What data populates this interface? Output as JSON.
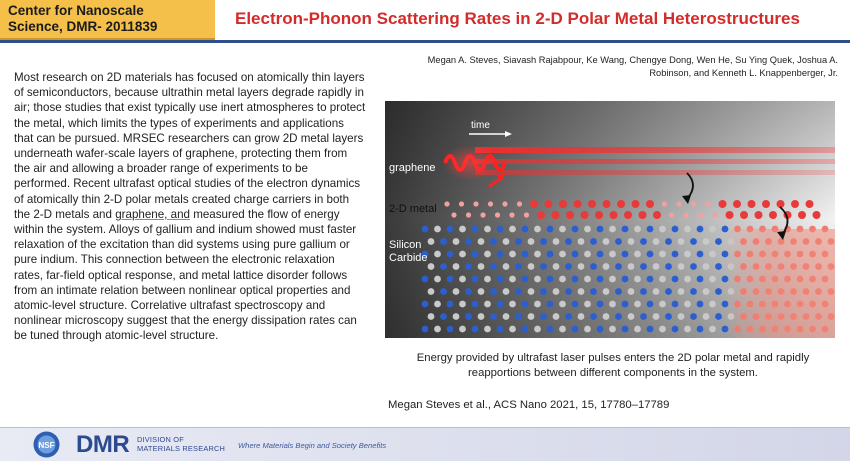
{
  "header": {
    "center_line1": "Center for Nanoscale",
    "center_line2": "Science, DMR- 2011839",
    "title": "Electron-Phonon Scattering Rates in 2-D Polar Metal Heterostructures"
  },
  "authors": {
    "line1": "Megan A. Steves, Siavash Rajabpour, Ke Wang, Chengye Dong, Wen He, Su Ying Quek, Joshua A.",
    "line2": "Robinson, and Kenneth L. Knappenberger, Jr."
  },
  "body": {
    "before_link": "Most research on 2D materials has focused on atomically thin layers of semiconductors, because ultrathin metal layers degrade rapidly in air; those studies that exist typically use inert atmospheres to protect the metal, which limits the types of experiments and applications that can be pursued. MRSEC researchers can grow 2D metal layers underneath wafer-scale layers of graphene, protecting them from the air and allowing a broader range of experiments to be performed. Recent ultrafast optical studies of the electron dynamics of atomically thin 2-D polar metals created charge carriers in both the 2-D metals and ",
    "link": "graphene, and",
    "after_link": " measured the flow of energy within the system. Alloys of gallium and indium showed must faster relaxation of the excitation than did systems using pure gallium or pure indium. This connection between the electronic relaxation rates, far-field optical response, and metal lattice disorder follows from an intimate relation between nonlinear optical properties and atomic-level structure. Correlative ultrafast spectroscopy and nonlinear microscopy suggest that the energy dissipation rates can be tuned through atomic-level structure."
  },
  "figure": {
    "time_label": "time",
    "graphene_label": "graphene",
    "metal_label": "2-D metal",
    "sic_label_1": "Silicon",
    "sic_label_2": "Carbide"
  },
  "caption": {
    "line1": "Energy provided by ultrafast laser pulses enters the 2D polar metal and rapidly",
    "line2": "reapportions between different components in the system."
  },
  "citation": "Megan Steves et al., ACS Nano 2021, 15, 17780–17789",
  "footer": {
    "nsf": "NSF",
    "dmr": "DMR",
    "dmr_sub1": "DIVISION OF",
    "dmr_sub2": "MATERIALS RESEARCH",
    "tagline": "Where Materials Begin and Society Benefits"
  }
}
